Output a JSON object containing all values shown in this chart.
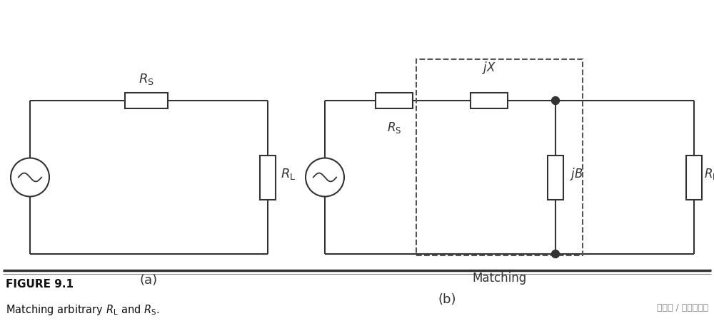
{
  "bg_color": "#ffffff",
  "line_color": "#333333",
  "line_width": 1.5,
  "figure_label": "FIGURE 9.1",
  "caption": "Matching arbitrary $R_\\mathrm{L}$ and $R_\\mathrm{S}$.",
  "watermark": "头条号 / 万物云联网",
  "label_a": "(a)",
  "label_b": "(b)",
  "RS_label_a": "$R_\\mathrm{S}$",
  "RL_label_a": "$R_\\mathrm{L}$",
  "RS_label_b": "$R_\\mathrm{S}$",
  "jX_label": "$jX$",
  "jB_label": "$jB$",
  "RL_label_b": "$R_\\mathrm{L}$",
  "matching_label": "Matching",
  "xlim": [
    0,
    10
  ],
  "ylim": [
    0,
    4.71
  ]
}
